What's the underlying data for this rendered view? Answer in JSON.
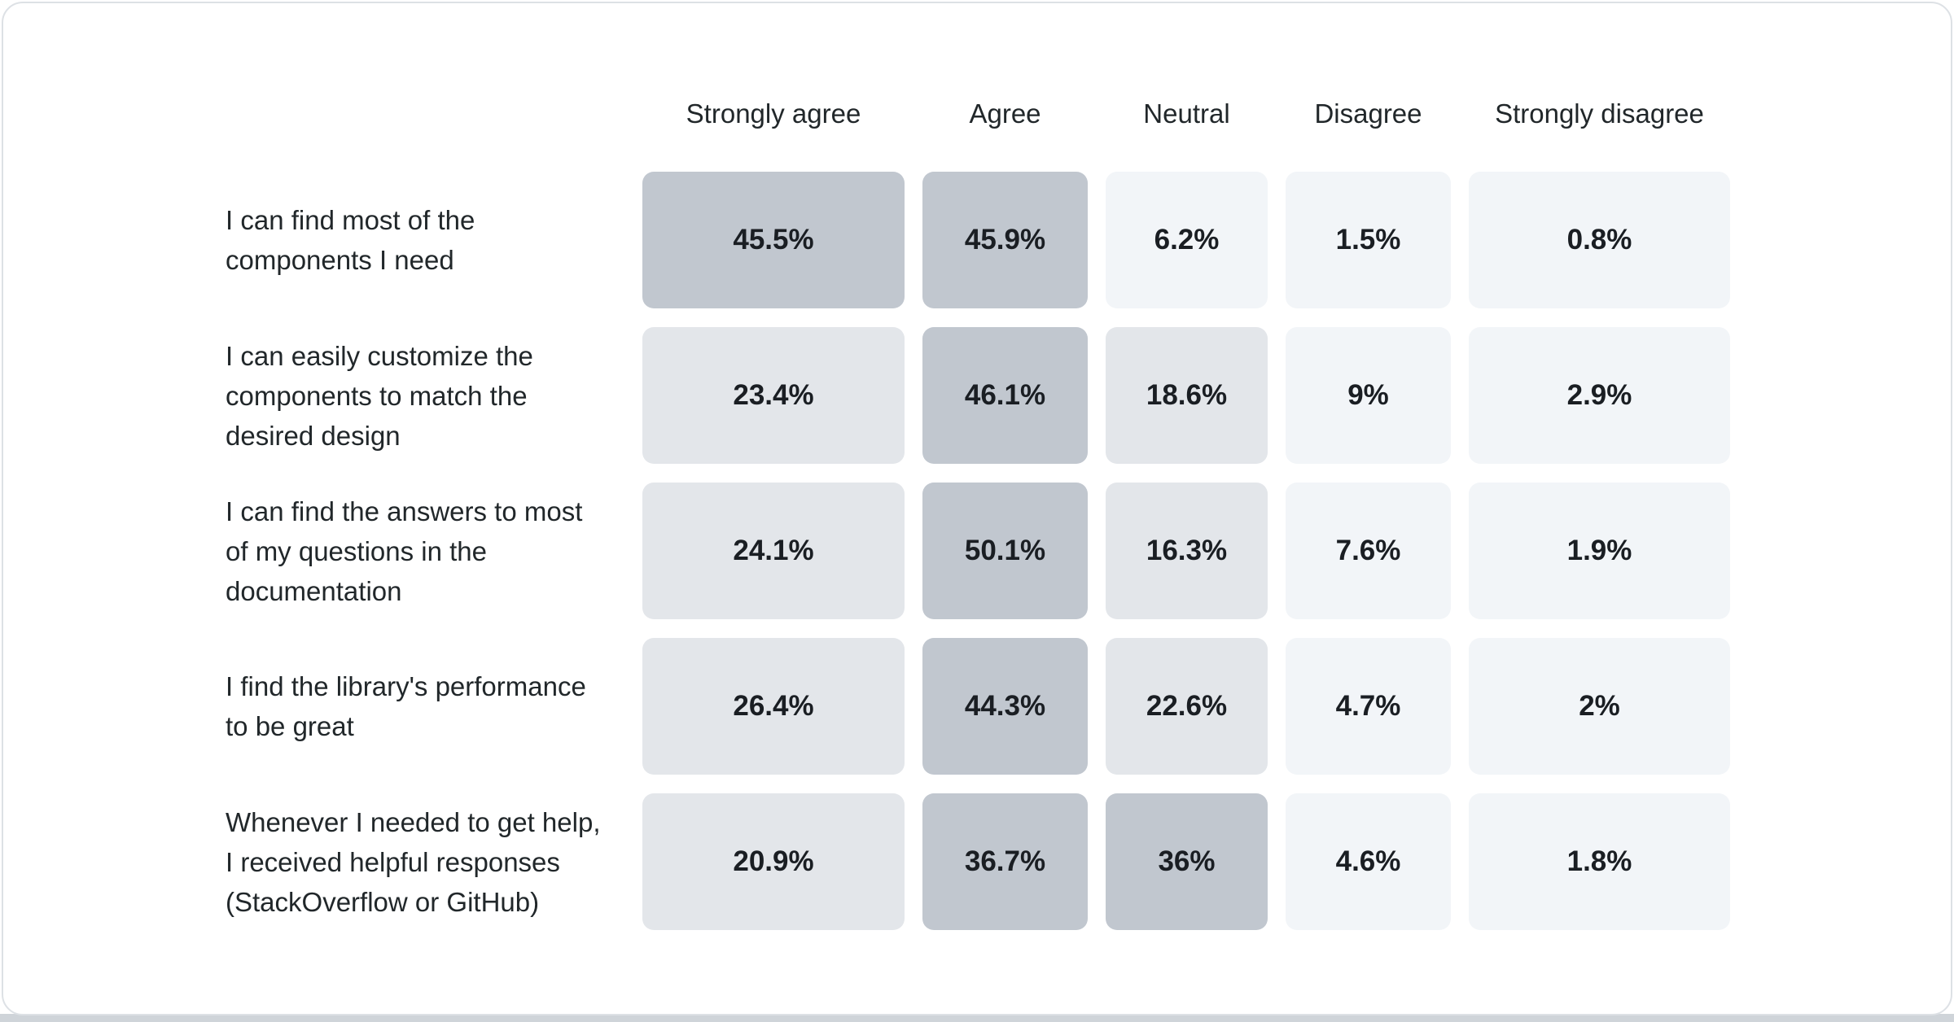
{
  "card": {
    "name": "Survey results heatmap"
  },
  "colors": {
    "card_background": "#ffffff",
    "card_border": "#dde1e5",
    "bottom_strip": "#cfd4d9",
    "cell_high": "#c1c7cf",
    "cell_mid": "#e3e6ea",
    "cell_low": "#f2f5f8",
    "header_text": "#21272a",
    "label_text": "#21272a",
    "value_text": "#1a1e23"
  },
  "chart_data": {
    "type": "heatmap",
    "value_suffix": "%",
    "legend_position": "none",
    "grid": false,
    "color_thresholds": [
      10,
      30
    ],
    "columns": [
      "Strongly agree",
      "Agree",
      "Neutral",
      "Disagree",
      "Strongly disagree"
    ],
    "rows": [
      {
        "label": "I can find most of the components I need",
        "label_lines": [
          "I can find most of the",
          "components I need"
        ],
        "values": [
          45.5,
          45.9,
          6.2,
          1.5,
          0.8
        ]
      },
      {
        "label": "I can easily customize the components to match the desired design",
        "label_lines": [
          "I can easily customize the",
          "components to match the",
          "desired design"
        ],
        "values": [
          23.4,
          46.1,
          18.6,
          9,
          2.9
        ]
      },
      {
        "label": "I can find the answers to most of my questions in the documentation",
        "label_lines": [
          "I can find the answers to most",
          "of my questions in the",
          "documentation"
        ],
        "values": [
          24.1,
          50.1,
          16.3,
          7.6,
          1.9
        ]
      },
      {
        "label": "I find the library's performance to be great",
        "label_lines": [
          "I find the library's performance",
          "to be great"
        ],
        "values": [
          26.4,
          44.3,
          22.6,
          4.7,
          2
        ]
      },
      {
        "label": "Whenever I needed to get help, I received helpful responses (StackOverflow or GitHub)",
        "label_lines": [
          "Whenever I needed to get help,",
          "I received helpful responses",
          "(StackOverflow or GitHub)"
        ],
        "values": [
          20.9,
          36.7,
          36,
          4.6,
          1.8
        ]
      }
    ]
  }
}
